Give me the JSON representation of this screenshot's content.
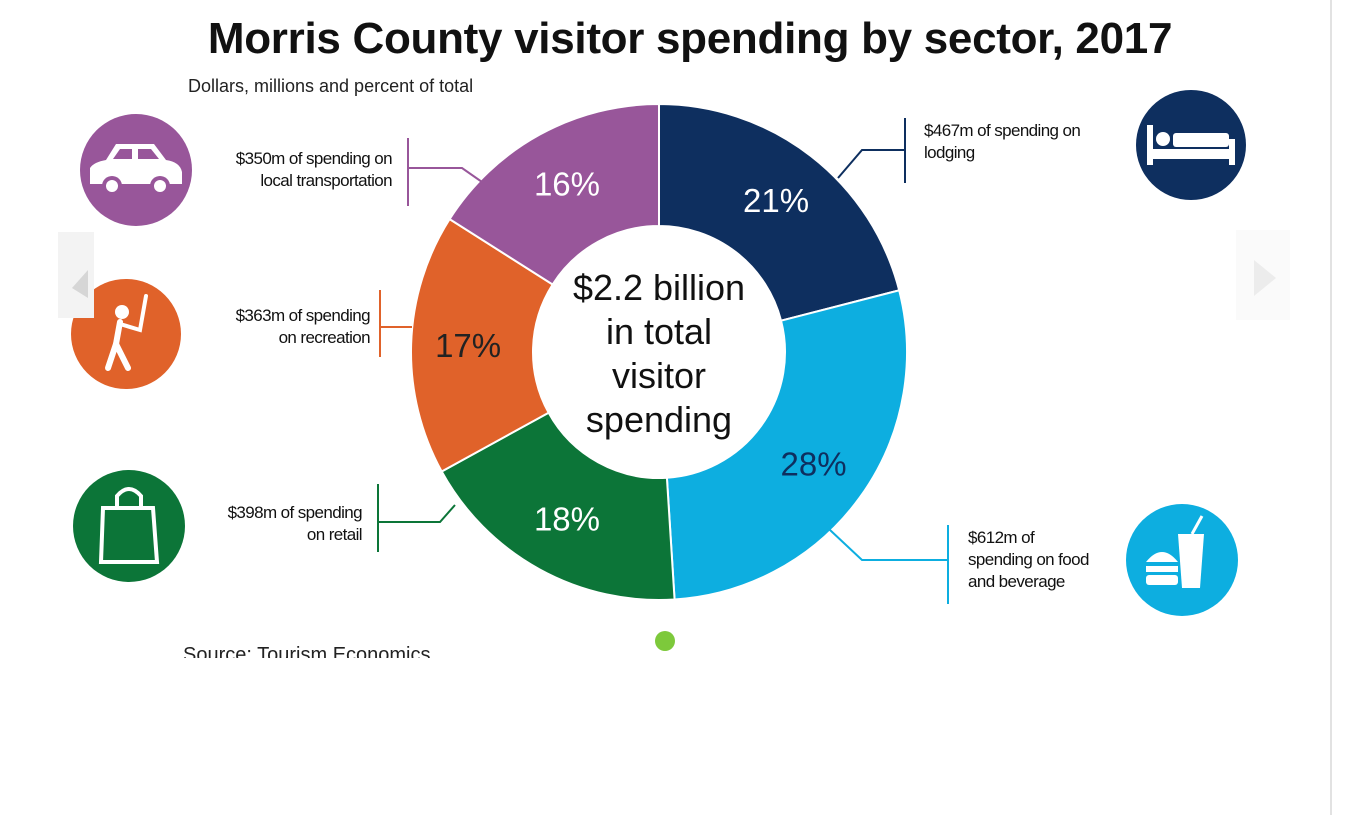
{
  "chart_data": {
    "type": "pie",
    "title": "Morris County visitor spending by sector, 2017",
    "subtitle": "Dollars, millions and percent of total",
    "center_label": [
      "$2.2 billion",
      "in total",
      "visitor",
      "spending"
    ],
    "source": "Source: Tourism Economics",
    "slices": [
      {
        "key": "lodging",
        "percent": 21,
        "value": 467,
        "pct_label": "21%",
        "label": [
          "$467m of spending on",
          "lodging"
        ],
        "color": "#0e2f5f",
        "text_color": "#ffffff",
        "icon": "bed-icon"
      },
      {
        "key": "food",
        "percent": 28,
        "value": 612,
        "pct_label": "28%",
        "label": [
          "$612m of",
          "spending on food",
          "and beverage"
        ],
        "color": "#0daee0",
        "text_color": "#0e2f5f",
        "icon": "food-beverage-icon"
      },
      {
        "key": "retail",
        "percent": 18,
        "value": 398,
        "pct_label": "18%",
        "label": [
          "$398m of spending",
          "on retail"
        ],
        "color": "#0c7538",
        "text_color": "#ffffff",
        "icon": "shopping-bag-icon"
      },
      {
        "key": "recreation",
        "percent": 17,
        "value": 363,
        "pct_label": "17%",
        "label": [
          "$363m of spending",
          "on recreation"
        ],
        "color": "#e0622a",
        "text_color": "#222222",
        "icon": "golfer-icon"
      },
      {
        "key": "transport",
        "percent": 16,
        "value": 350,
        "pct_label": "16%",
        "label": [
          "$350m of spending on",
          "local transportation"
        ],
        "color": "#98569a",
        "text_color": "#ffffff",
        "icon": "car-icon"
      }
    ]
  },
  "colors": {
    "accent_dot": "#7dc93b"
  }
}
